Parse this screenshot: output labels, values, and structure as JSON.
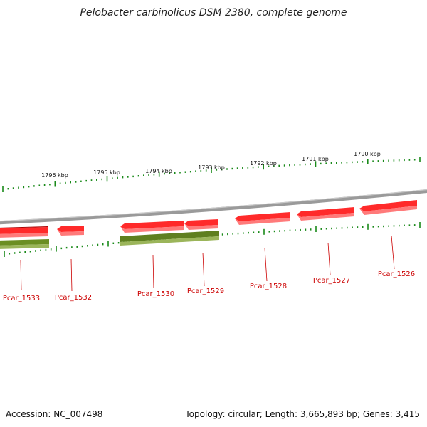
{
  "title": "Pelobacter carbinolicus DSM 2380, complete genome",
  "footer": {
    "accession": "Accession: NC_007498",
    "summary": "Topology: circular; Length: 3,665,893 bp; Genes: 3,415"
  },
  "colors": {
    "forward_gene": "#e81010",
    "reverse_gene": "#6b8e23",
    "tick": "#1a8a1a",
    "backbone": "#8a8a8a",
    "label": "#cc0000"
  },
  "scale_labels": [
    "1796 kbp",
    "1795 kbp",
    "1794 kbp",
    "1793 kbp",
    "1792 kbp",
    "1791 kbp",
    "1790 kbp"
  ],
  "genes": [
    {
      "label": "Pcar_1533",
      "strand": "forward"
    },
    {
      "label": "Pcar_1532",
      "strand": "forward"
    },
    {
      "label": "Pcar_1530",
      "strand": "forward"
    },
    {
      "label": "Pcar_1529",
      "strand": "forward"
    },
    {
      "label": "Pcar_1528",
      "strand": "forward"
    },
    {
      "label": "Pcar_1527",
      "strand": "forward"
    },
    {
      "label": "Pcar_1526",
      "strand": "forward"
    }
  ],
  "reverse_genes": [
    {
      "name": "reverse-gene-left"
    },
    {
      "name": "reverse-gene-middle"
    }
  ]
}
